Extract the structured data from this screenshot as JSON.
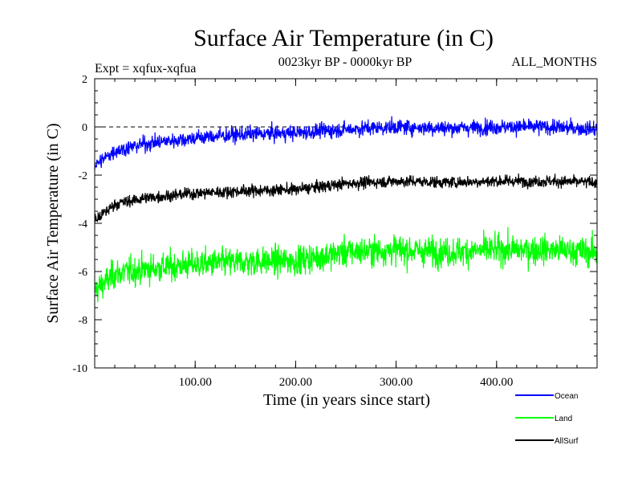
{
  "chart_data": {
    "type": "line",
    "title": "Surface Air Temperature (in C)",
    "subtitle": "0023kyr BP - 0000kyr BP",
    "experiment": "Expt = xqfux-xqfua",
    "months": "ALL_MONTHS",
    "xlabel": "Time (in years since start)",
    "ylabel": "Surface Air Temperature (in C)",
    "xlim": [
      0,
      500
    ],
    "ylim": [
      -10,
      2
    ],
    "x_ticks": [
      100,
      200,
      300,
      400
    ],
    "x_tick_labels": [
      "100.00",
      "200.00",
      "300.00",
      "400.00"
    ],
    "y_ticks": [
      -10,
      -8,
      -6,
      -4,
      -2,
      0,
      2
    ],
    "y_tick_labels": [
      "-10",
      "-8",
      "-6",
      "-4",
      "-2",
      "0",
      "2"
    ],
    "zero_line": 0,
    "legend": [
      "Ocean",
      "Land",
      "AllSurf"
    ],
    "legend_position": "bottom-right",
    "series": [
      {
        "name": "Ocean",
        "color": "#0000ff",
        "trend": [
          [
            0,
            -1.6
          ],
          [
            20,
            -1.0
          ],
          [
            50,
            -0.7
          ],
          [
            100,
            -0.45
          ],
          [
            150,
            -0.3
          ],
          [
            200,
            -0.25
          ],
          [
            250,
            -0.1
          ],
          [
            300,
            0.0
          ],
          [
            350,
            -0.05
          ],
          [
            400,
            0.0
          ],
          [
            450,
            0.0
          ],
          [
            500,
            -0.1
          ]
        ],
        "noise": 0.45
      },
      {
        "name": "Land",
        "color": "#00ff00",
        "trend": [
          [
            0,
            -6.8
          ],
          [
            20,
            -6.1
          ],
          [
            50,
            -5.9
          ],
          [
            100,
            -5.7
          ],
          [
            150,
            -5.6
          ],
          [
            200,
            -5.55
          ],
          [
            250,
            -5.2
          ],
          [
            300,
            -5.1
          ],
          [
            350,
            -5.2
          ],
          [
            400,
            -5.1
          ],
          [
            450,
            -5.1
          ],
          [
            500,
            -5.2
          ]
        ],
        "noise": 0.85
      },
      {
        "name": "AllSurf",
        "color": "#000000",
        "trend": [
          [
            0,
            -3.9
          ],
          [
            20,
            -3.2
          ],
          [
            50,
            -2.95
          ],
          [
            100,
            -2.75
          ],
          [
            150,
            -2.65
          ],
          [
            200,
            -2.6
          ],
          [
            250,
            -2.35
          ],
          [
            300,
            -2.25
          ],
          [
            350,
            -2.3
          ],
          [
            400,
            -2.25
          ],
          [
            450,
            -2.25
          ],
          [
            500,
            -2.3
          ]
        ],
        "noise": 0.35
      }
    ]
  }
}
